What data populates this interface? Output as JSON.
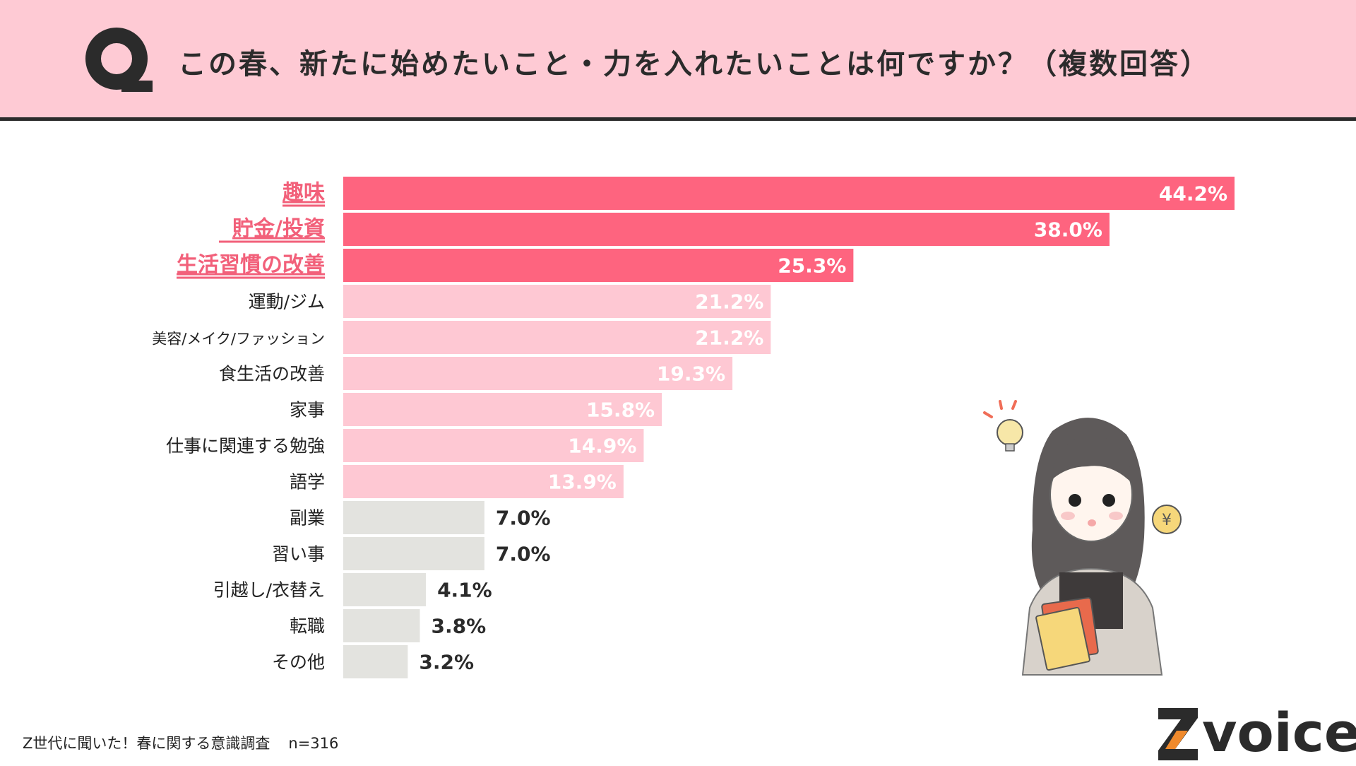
{
  "header": {
    "title": "この春、新たに始めたいこと・力を入れたいことは何ですか？（複数回答）"
  },
  "footer": {
    "survey": "Z世代に聞いた！春に関する意識調査",
    "sample": "n=316"
  },
  "logo": {
    "text": "voice"
  },
  "colors": {
    "header_bg": "#fecad4",
    "top_bar": "#fe647f",
    "mid_bar": "#fec8d3",
    "low_bar": "#e3e3df",
    "highlight_label": "#f2607a"
  },
  "chart_data": {
    "type": "bar",
    "orientation": "horizontal",
    "categories": [
      "趣味",
      "貯金/投資",
      "生活習慣の改善",
      "運動/ジム",
      "美容/メイク/ファッション",
      "食生活の改善",
      "家事",
      "仕事に関連する勉強",
      "語学",
      "副業",
      "習い事",
      "引越し/衣替え",
      "転職",
      "その他"
    ],
    "values": [
      44.2,
      38.0,
      25.3,
      21.2,
      21.2,
      19.3,
      15.8,
      14.9,
      13.9,
      7.0,
      7.0,
      4.1,
      3.8,
      3.2
    ],
    "value_labels": [
      "44.2%",
      "38.0%",
      "25.3%",
      "21.2%",
      "21.2%",
      "19.3%",
      "15.8%",
      "14.9%",
      "13.9%",
      "7.0%",
      "7.0%",
      "4.1%",
      "3.8%",
      "3.2%"
    ],
    "unit": "%",
    "highlighted_top": 3,
    "xlim": [
      0,
      44.2
    ],
    "grid": false,
    "legend": "none"
  }
}
